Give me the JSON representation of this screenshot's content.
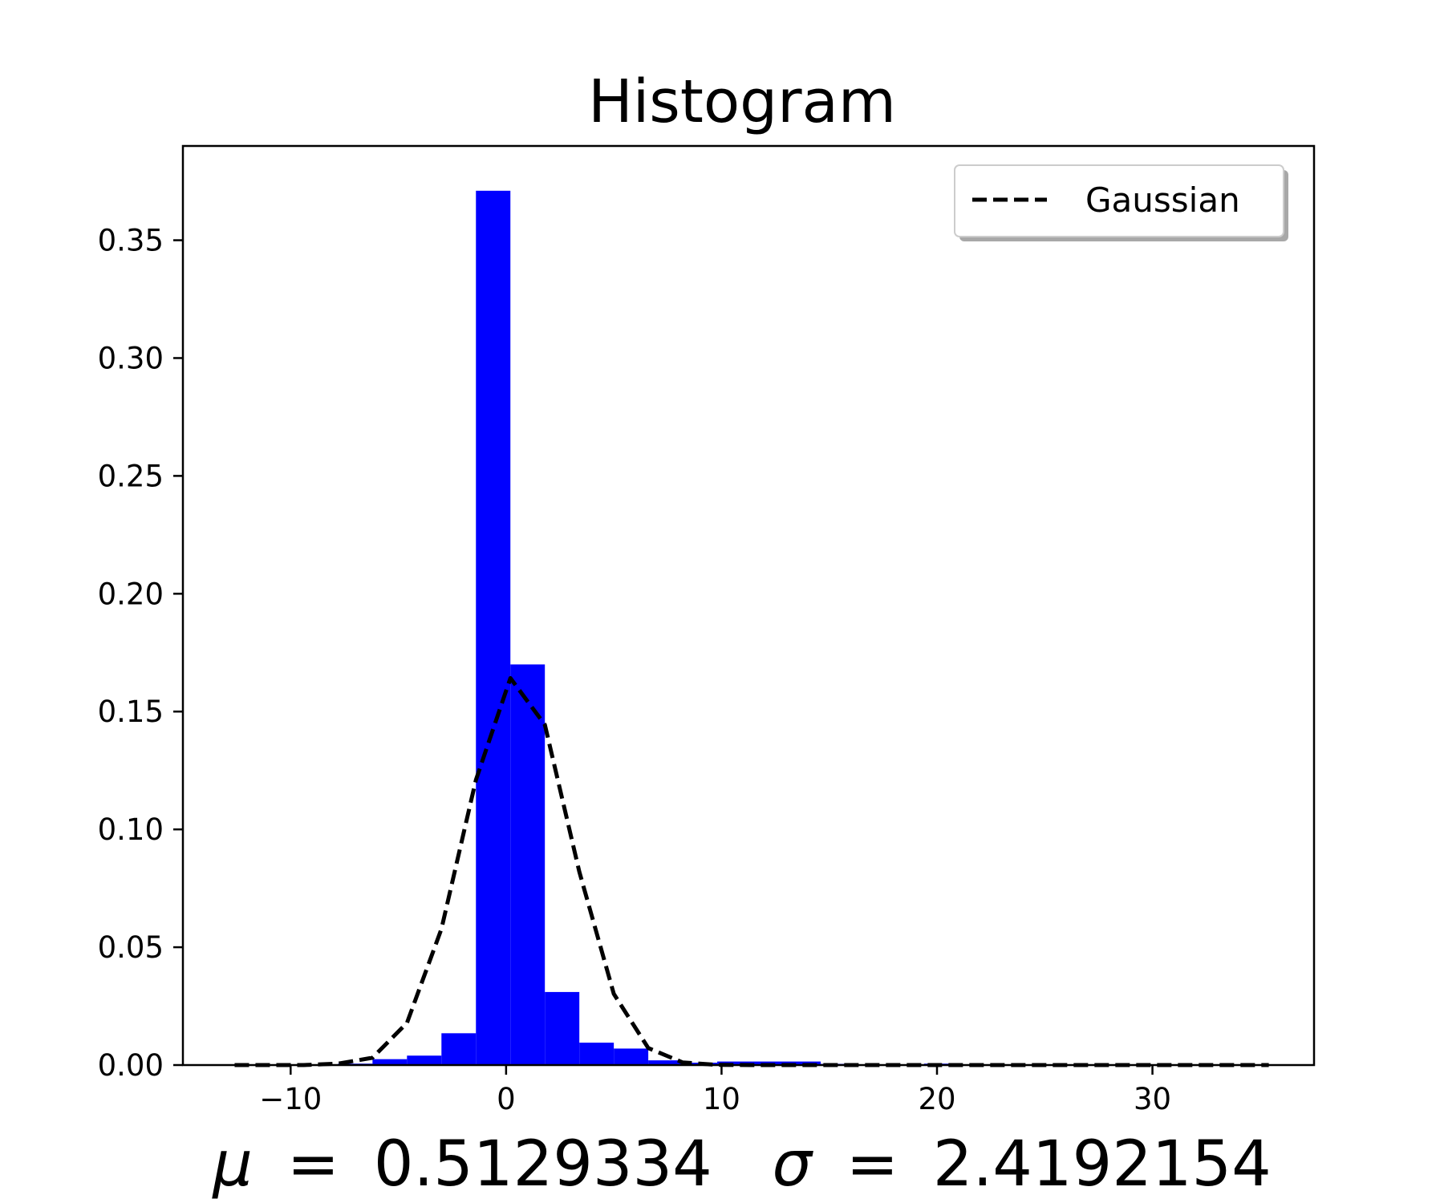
{
  "chart_data": {
    "type": "bar",
    "title": "Histogram",
    "xlabel": "",
    "ylabel": "",
    "xlim": [
      -15,
      37.5
    ],
    "ylim": [
      0,
      0.39
    ],
    "x_ticks": [
      -10,
      0,
      10,
      20,
      30
    ],
    "x_tick_labels": [
      "−10",
      "0",
      "10",
      "20",
      "30"
    ],
    "y_ticks": [
      0,
      0.05,
      0.1,
      0.15,
      0.2,
      0.25,
      0.3,
      0.35
    ],
    "y_tick_labels": [
      "0.00",
      "0.05",
      "0.10",
      "0.15",
      "0.20",
      "0.25",
      "0.30",
      "0.35"
    ],
    "bar_color": "#0000ff",
    "bins": [
      {
        "x0": -12.6,
        "x1": -11.0,
        "value": 0.0003
      },
      {
        "x0": -11.0,
        "x1": -9.4,
        "value": 0.0003
      },
      {
        "x0": -9.4,
        "x1": -7.8,
        "value": 0.0003
      },
      {
        "x0": -7.8,
        "x1": -6.2,
        "value": 0.0006
      },
      {
        "x0": -6.2,
        "x1": -4.6,
        "value": 0.0025
      },
      {
        "x0": -4.6,
        "x1": -3.0,
        "value": 0.004
      },
      {
        "x0": -3.0,
        "x1": -1.4,
        "value": 0.0135
      },
      {
        "x0": -1.4,
        "x1": 0.2,
        "value": 0.371
      },
      {
        "x0": 0.2,
        "x1": 1.8,
        "value": 0.17
      },
      {
        "x0": 1.8,
        "x1": 3.4,
        "value": 0.031
      },
      {
        "x0": 3.4,
        "x1": 5.0,
        "value": 0.0095
      },
      {
        "x0": 5.0,
        "x1": 6.6,
        "value": 0.007
      },
      {
        "x0": 6.6,
        "x1": 8.2,
        "value": 0.002
      },
      {
        "x0": 8.2,
        "x1": 9.8,
        "value": 0.001
      },
      {
        "x0": 9.8,
        "x1": 11.4,
        "value": 0.0015
      },
      {
        "x0": 11.4,
        "x1": 13.0,
        "value": 0.0015
      },
      {
        "x0": 13.0,
        "x1": 14.6,
        "value": 0.0015
      },
      {
        "x0": 14.6,
        "x1": 16.2,
        "value": 0.0005
      },
      {
        "x0": 16.2,
        "x1": 17.8,
        "value": 0.0003
      },
      {
        "x0": 17.8,
        "x1": 19.4,
        "value": 0.0003
      },
      {
        "x0": 19.4,
        "x1": 21.0,
        "value": 0.0006
      },
      {
        "x0": 21.0,
        "x1": 22.6,
        "value": 0.0003
      },
      {
        "x0": 22.6,
        "x1": 24.2,
        "value": 0.0003
      },
      {
        "x0": 24.2,
        "x1": 25.8,
        "value": 0.0003
      },
      {
        "x0": 25.8,
        "x1": 27.4,
        "value": 0.0003
      },
      {
        "x0": 27.4,
        "x1": 29.0,
        "value": 0.0003
      },
      {
        "x0": 29.0,
        "x1": 30.6,
        "value": 0.0003
      },
      {
        "x0": 30.6,
        "x1": 32.2,
        "value": 0.0003
      },
      {
        "x0": 32.2,
        "x1": 33.8,
        "value": 0.0003
      },
      {
        "x0": 33.8,
        "x1": 35.4,
        "value": 0.0003
      }
    ],
    "series": [
      {
        "name": "Gaussian",
        "style": "dashed",
        "color": "#000000",
        "x": [
          -12.6,
          -11.0,
          -9.4,
          -7.8,
          -6.2,
          -4.6,
          -3.0,
          -1.4,
          0.2,
          1.8,
          3.4,
          5.0,
          6.6,
          8.2,
          9.8,
          11.4,
          13.0,
          14.6,
          16.2,
          17.8,
          19.4,
          21.0,
          22.6,
          24.2,
          25.8,
          27.4,
          29.0,
          30.6,
          32.2,
          33.8,
          35.4
        ],
        "values": [
          0.0,
          0.0,
          0.0,
          0.0006,
          0.0031,
          0.0179,
          0.0578,
          0.121,
          0.1642,
          0.1444,
          0.082,
          0.0302,
          0.0072,
          0.0011,
          0.0001,
          0.0,
          0.0,
          0.0,
          0.0,
          0.0,
          0.0,
          0.0,
          0.0,
          0.0,
          0.0,
          0.0,
          0.0,
          0.0,
          0.0,
          0.0,
          0.0
        ]
      }
    ],
    "legend": {
      "position": "top-right",
      "entries": [
        "Gaussian"
      ]
    },
    "grid": false,
    "stats": {
      "mu_symbol": "μ",
      "mu_value": "0.5129334",
      "sigma_symbol": "σ",
      "sigma_value": "2.4192154",
      "equals": "="
    }
  }
}
